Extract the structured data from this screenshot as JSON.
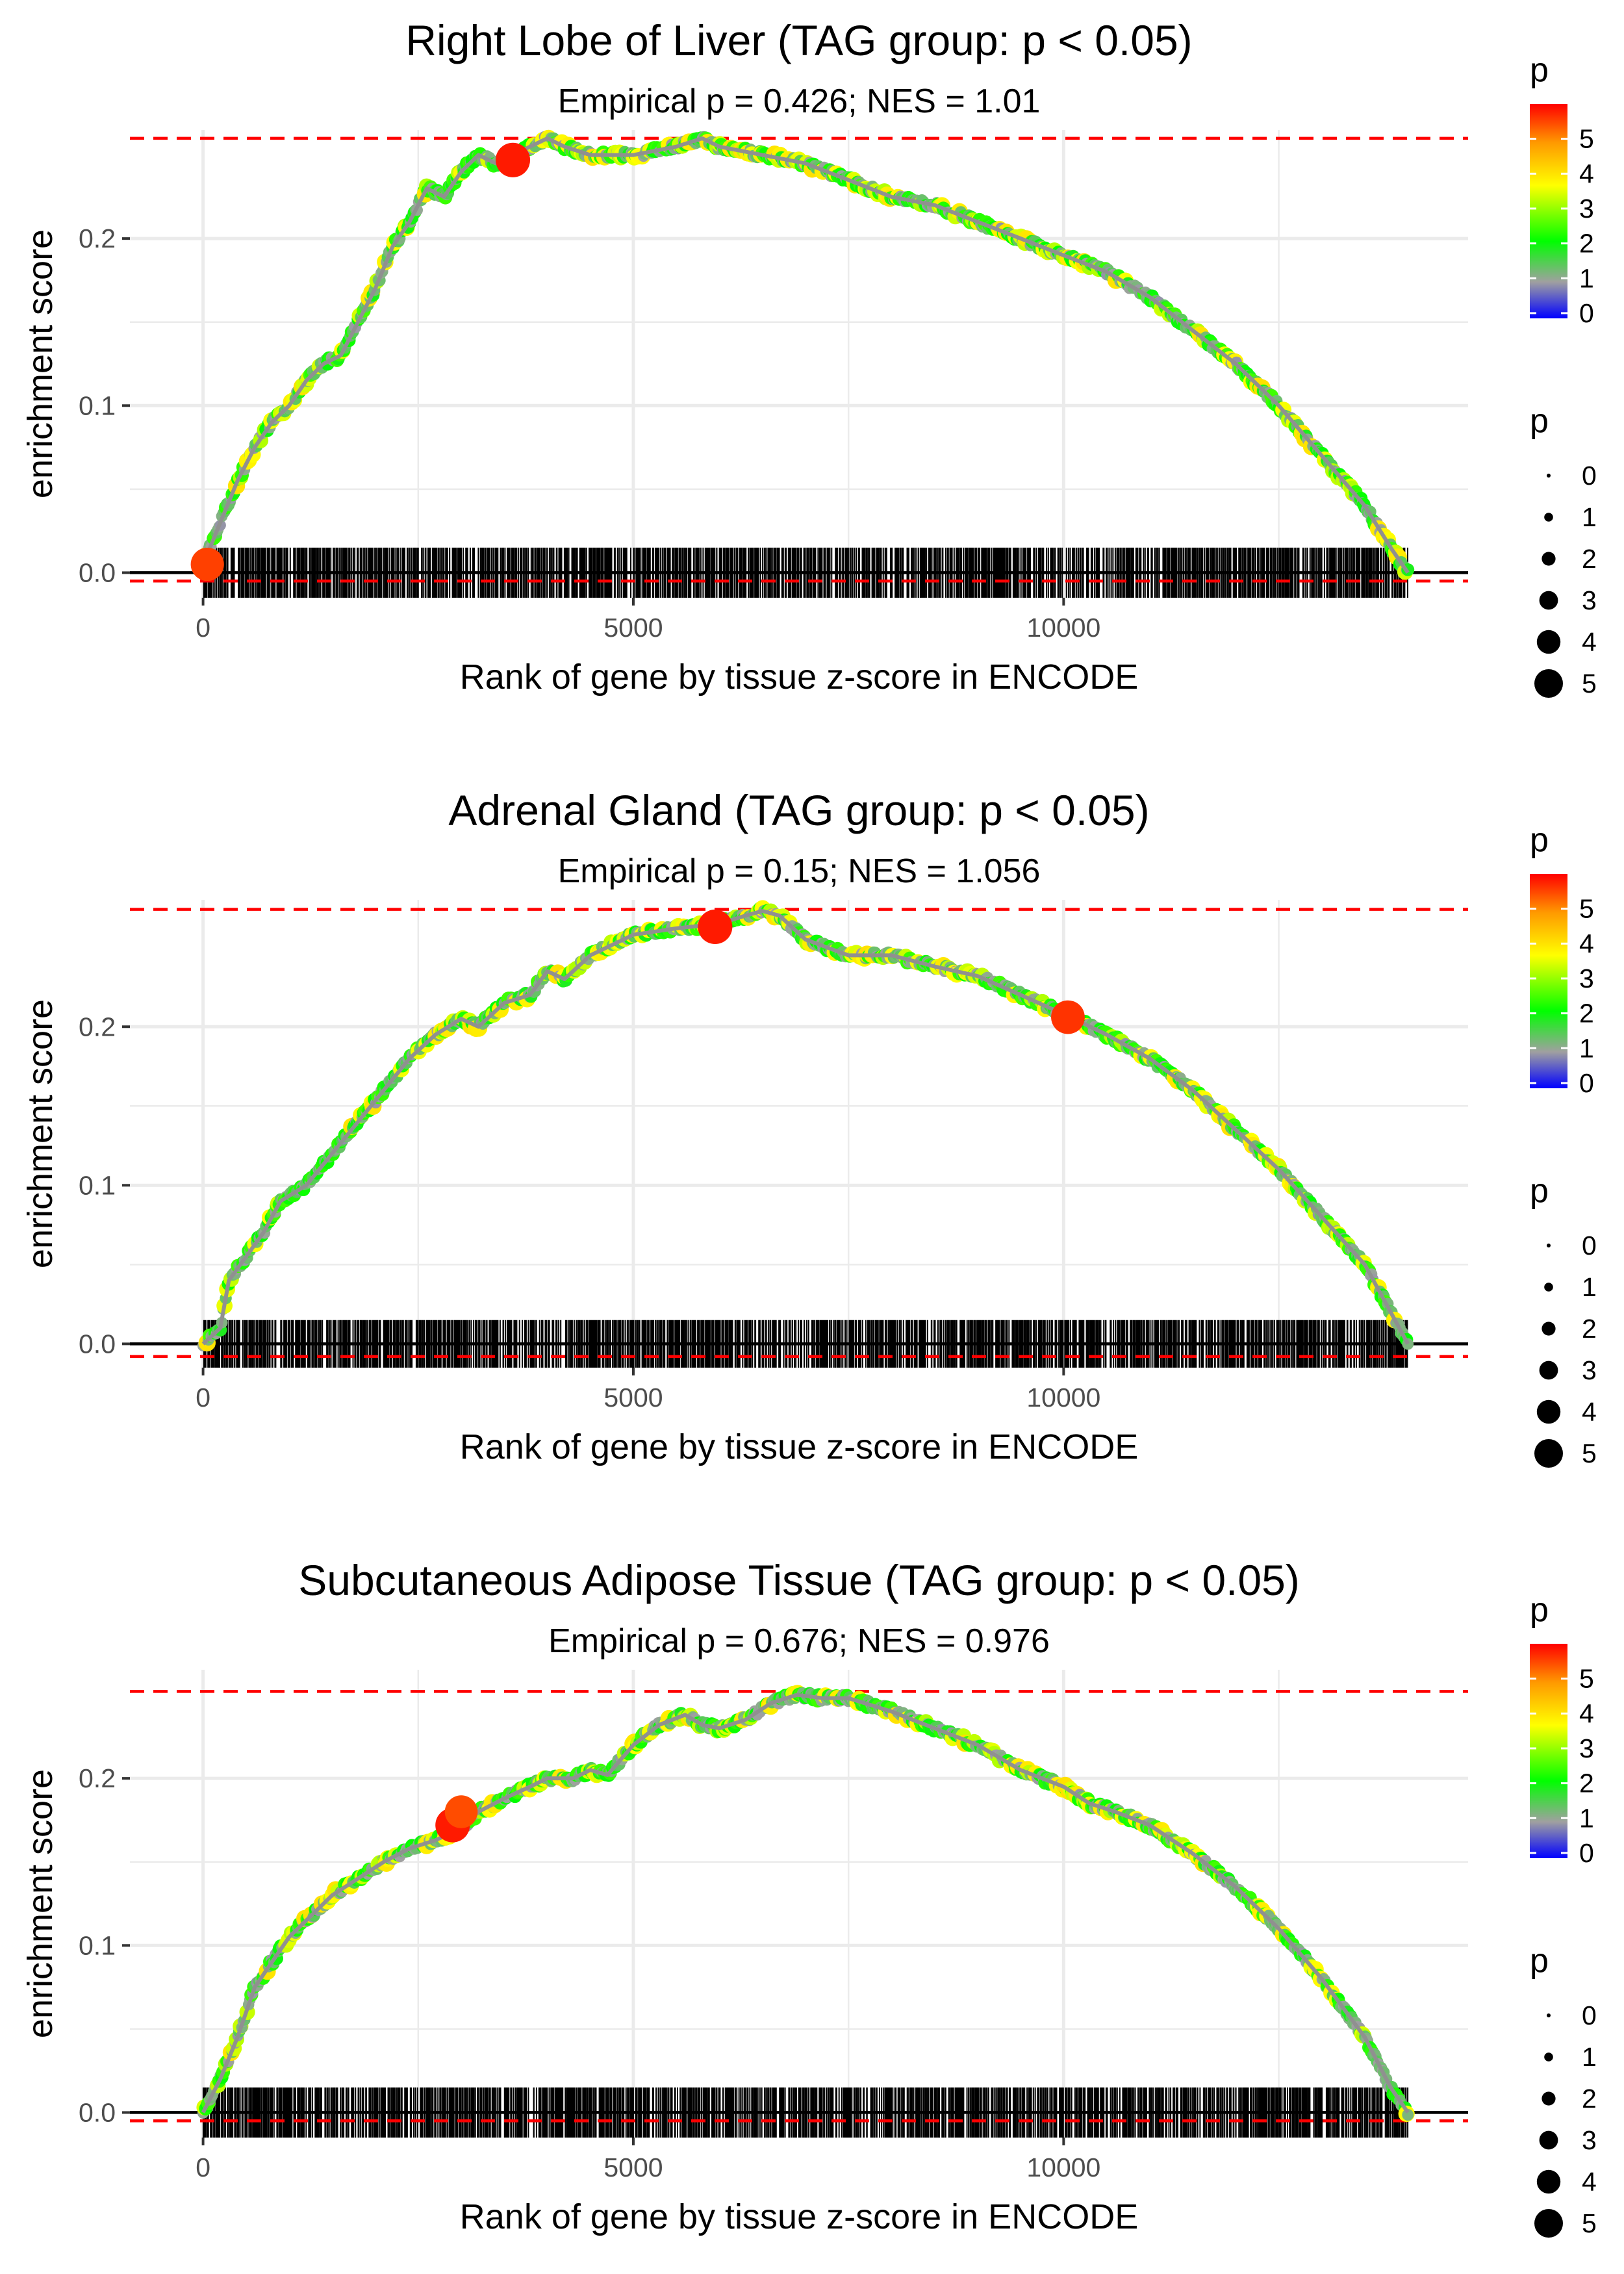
{
  "chart_data": [
    {
      "type": "line",
      "title": "Right Lobe of Liver (TAG group: p < 0.05)",
      "subtitle": "Empirical p = 0.426; NES = 1.01",
      "xlabel": "Rank of gene by tissue z-score in ENCODE",
      "ylabel": "enrichment score",
      "xlim": [
        -850,
        14700
      ],
      "ylim": [
        -0.015,
        0.265
      ],
      "x_ticks": [
        0,
        5000,
        10000
      ],
      "x_tick_labels": [
        "0",
        "5000",
        "10000"
      ],
      "y_ticks": [
        0.0,
        0.1,
        0.2
      ],
      "y_tick_labels": [
        "0.0",
        "0.1",
        "0.2"
      ],
      "max_es_line": 0.26,
      "min_es_line": -0.005,
      "n_genes": 14000,
      "curve": {
        "x": [
          0,
          200,
          400,
          600,
          800,
          1000,
          1200,
          1400,
          1600,
          1800,
          2000,
          2200,
          2400,
          2600,
          2800,
          3000,
          3200,
          3400,
          3600,
          3800,
          4000,
          4200,
          4500,
          5000,
          5500,
          5800,
          6000,
          6500,
          7000,
          7500,
          8000,
          8500,
          9000,
          9500,
          10000,
          10500,
          11000,
          11500,
          12000,
          12500,
          13000,
          13500,
          13800,
          14000
        ],
        "y": [
          0.005,
          0.03,
          0.055,
          0.075,
          0.09,
          0.1,
          0.115,
          0.125,
          0.13,
          0.15,
          0.17,
          0.195,
          0.21,
          0.23,
          0.225,
          0.24,
          0.25,
          0.245,
          0.25,
          0.255,
          0.26,
          0.255,
          0.25,
          0.25,
          0.255,
          0.26,
          0.255,
          0.25,
          0.245,
          0.235,
          0.225,
          0.22,
          0.21,
          0.2,
          0.19,
          0.18,
          0.165,
          0.145,
          0.125,
          0.1,
          0.07,
          0.04,
          0.015,
          0.0
        ]
      },
      "highlight_points": [
        {
          "x": 50,
          "y": 0.005,
          "p": 5.5
        },
        {
          "x": 3600,
          "y": 0.247,
          "p": 5.8
        }
      ],
      "legend": {
        "color_title": "p",
        "color_ticks": [
          "0",
          "1",
          "2",
          "3",
          "4",
          "5"
        ],
        "size_title": "p",
        "size_labels": [
          "0",
          "1",
          "2",
          "3",
          "4",
          "5"
        ]
      }
    },
    {
      "type": "line",
      "title": "Adrenal Gland (TAG group: p < 0.05)",
      "subtitle": "Empirical p = 0.15; NES = 1.056",
      "xlabel": "Rank of gene by tissue z-score in ENCODE",
      "ylabel": "enrichment score",
      "xlim": [
        -850,
        14700
      ],
      "ylim": [
        -0.015,
        0.28
      ],
      "x_ticks": [
        0,
        5000,
        10000
      ],
      "x_tick_labels": [
        "0",
        "5000",
        "10000"
      ],
      "y_ticks": [
        0.0,
        0.1,
        0.2
      ],
      "y_tick_labels": [
        "0.0",
        "0.1",
        "0.2"
      ],
      "max_es_line": 0.274,
      "min_es_line": -0.008,
      "n_genes": 14000,
      "curve": {
        "x": [
          0,
          200,
          300,
          500,
          700,
          900,
          1200,
          1500,
          1800,
          2100,
          2400,
          2700,
          3000,
          3200,
          3500,
          3800,
          4000,
          4200,
          4500,
          5000,
          5500,
          6000,
          6300,
          6500,
          6700,
          7000,
          7500,
          8000,
          8500,
          9000,
          9500,
          10000,
          10500,
          11000,
          11500,
          12000,
          12500,
          13000,
          13500,
          13800,
          14000
        ],
        "y": [
          0.0,
          0.01,
          0.04,
          0.055,
          0.07,
          0.09,
          0.1,
          0.12,
          0.14,
          0.16,
          0.18,
          0.195,
          0.205,
          0.2,
          0.215,
          0.22,
          0.235,
          0.23,
          0.245,
          0.258,
          0.262,
          0.265,
          0.27,
          0.273,
          0.27,
          0.255,
          0.245,
          0.245,
          0.238,
          0.232,
          0.22,
          0.208,
          0.195,
          0.18,
          0.16,
          0.135,
          0.11,
          0.08,
          0.05,
          0.02,
          0.0
        ]
      },
      "highlight_points": [
        {
          "x": 5950,
          "y": 0.263,
          "p": 5.8
        },
        {
          "x": 10050,
          "y": 0.206,
          "p": 5.6
        }
      ],
      "legend": {
        "color_title": "p",
        "color_ticks": [
          "0",
          "1",
          "2",
          "3",
          "4",
          "5"
        ],
        "size_title": "p",
        "size_labels": [
          "0",
          "1",
          "2",
          "3",
          "4",
          "5"
        ]
      }
    },
    {
      "type": "line",
      "title": "Subcutaneous Adipose Tissue (TAG group: p < 0.05)",
      "subtitle": "Empirical p = 0.676; NES = 0.976",
      "xlabel": "Rank of gene by tissue z-score in ENCODE",
      "ylabel": "enrichment score",
      "xlim": [
        -850,
        14700
      ],
      "ylim": [
        -0.015,
        0.265
      ],
      "x_ticks": [
        0,
        5000,
        10000
      ],
      "x_tick_labels": [
        "0",
        "5000",
        "10000"
      ],
      "y_ticks": [
        0.0,
        0.1,
        0.2
      ],
      "y_tick_labels": [
        "0.0",
        "0.1",
        "0.2"
      ],
      "max_es_line": 0.252,
      "min_es_line": -0.005,
      "n_genes": 14000,
      "curve": {
        "x": [
          0,
          200,
          400,
          600,
          800,
          1000,
          1200,
          1500,
          1800,
          2100,
          2400,
          2700,
          3000,
          3200,
          3500,
          3800,
          4000,
          4300,
          4500,
          4700,
          5000,
          5300,
          5600,
          5800,
          6000,
          6300,
          6600,
          6900,
          7200,
          7500,
          8000,
          8500,
          9000,
          9500,
          10000,
          10300,
          10600,
          11000,
          11500,
          12000,
          12500,
          13000,
          13500,
          13800,
          14000
        ],
        "y": [
          0.0,
          0.02,
          0.045,
          0.075,
          0.09,
          0.105,
          0.115,
          0.13,
          0.14,
          0.15,
          0.158,
          0.163,
          0.17,
          0.18,
          0.188,
          0.195,
          0.2,
          0.2,
          0.205,
          0.202,
          0.22,
          0.232,
          0.238,
          0.232,
          0.23,
          0.235,
          0.245,
          0.25,
          0.248,
          0.248,
          0.24,
          0.23,
          0.22,
          0.205,
          0.195,
          0.185,
          0.18,
          0.172,
          0.155,
          0.135,
          0.11,
          0.08,
          0.045,
          0.015,
          0.0
        ]
      },
      "highlight_points": [
        {
          "x": 2900,
          "y": 0.172,
          "p": 5.8
        },
        {
          "x": 3000,
          "y": 0.18,
          "p": 5.4
        }
      ],
      "legend": {
        "color_title": "p",
        "color_ticks": [
          "0",
          "1",
          "2",
          "3",
          "4",
          "5"
        ],
        "size_title": "p",
        "size_labels": [
          "0",
          "1",
          "2",
          "3",
          "4",
          "5"
        ]
      }
    }
  ],
  "colors": {
    "background": "#ffffff",
    "grid": "#ebebeb",
    "reference_line": "#ff0000",
    "zero_line": "#000000",
    "rug": "#000000",
    "curve_base": "#909090",
    "colorbar_stops": [
      "#0000ff",
      "#a0a0a0",
      "#00ff00",
      "#ffff00",
      "#ff8000",
      "#ff0000"
    ]
  }
}
